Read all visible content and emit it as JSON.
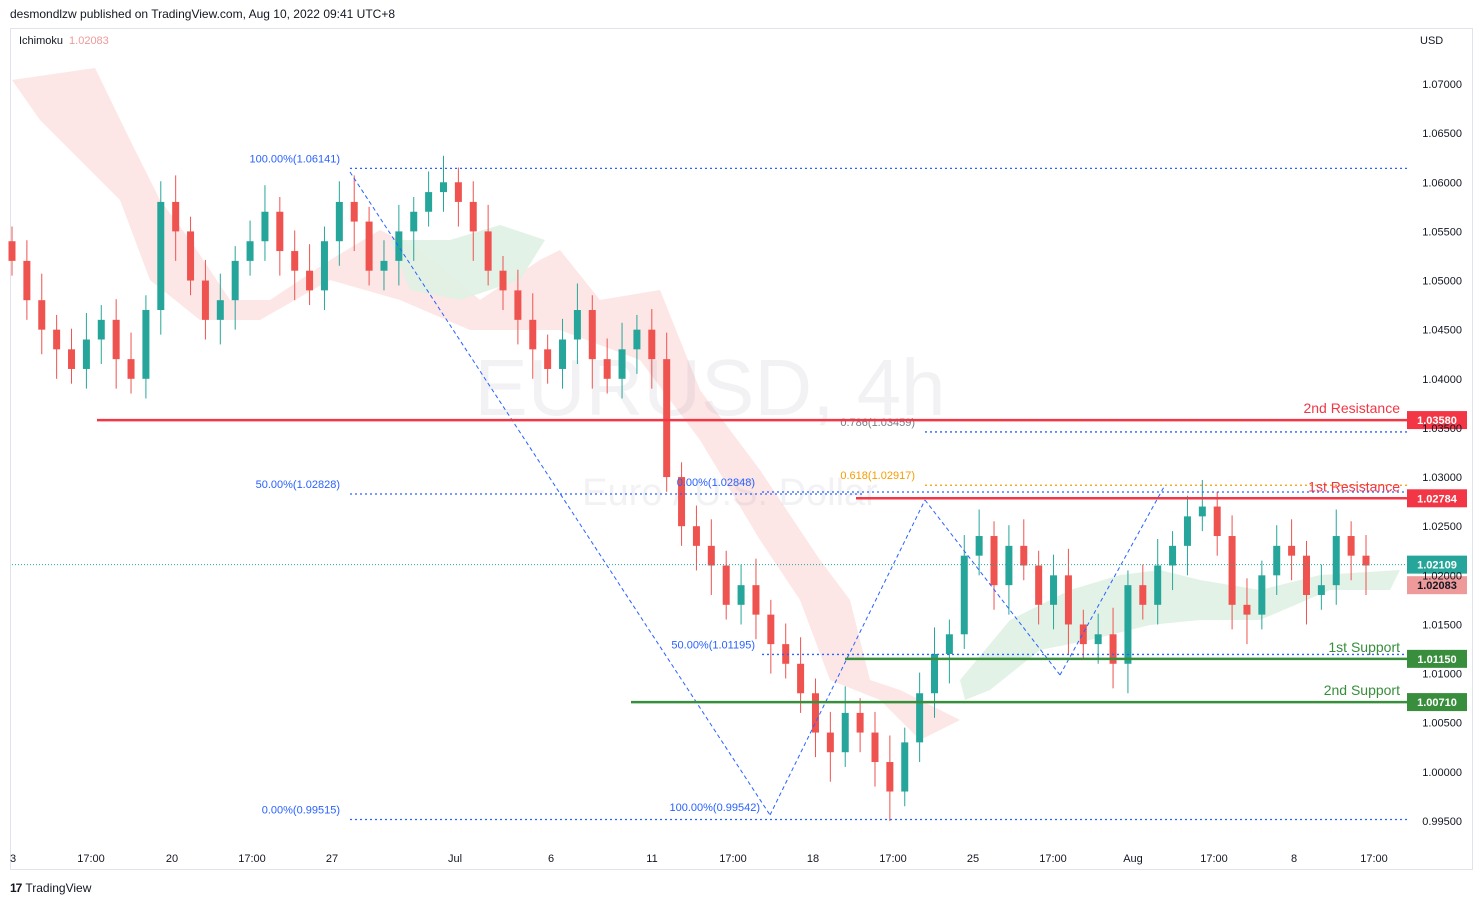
{
  "header": {
    "text": "desmondlzw published on TradingView.com, Aug 10, 2022 09:41 UTC+8"
  },
  "indicator": {
    "name": "Ichimoku",
    "value": "1.02083"
  },
  "currency": "USD",
  "watermark": {
    "symbol": "EURUSD, 4h",
    "name": "Euro / U.S. Dollar"
  },
  "footer": {
    "brand": "TradingView"
  },
  "colors": {
    "resistance": "#f23645",
    "support": "#388e3c",
    "fib": "#2962ff",
    "golden": "#f59d00",
    "up": "#26a69a",
    "down": "#ef5350",
    "cloud_bear": "#fde0e0",
    "cloud_bull": "#e0f1e3"
  },
  "chart_data": {
    "type": "candlestick",
    "title": "EURUSD, 4h",
    "subtitle": "Euro / U.S. Dollar",
    "y_ticks": [
      "1.07000",
      "1.06500",
      "1.06000",
      "1.05500",
      "1.05000",
      "1.04500",
      "1.04000",
      "1.03500",
      "1.03000",
      "1.02500",
      "1.02000",
      "1.01500",
      "1.01000",
      "1.00500",
      "1.00000",
      "0.99500"
    ],
    "x_ticks": [
      "3",
      "17:00",
      "20",
      "17:00",
      "27",
      "Jul",
      "6",
      "11",
      "17:00",
      "18",
      "17:00",
      "25",
      "17:00",
      "Aug",
      "17:00",
      "8",
      "17:00"
    ],
    "levels": [
      {
        "name": "2nd Resistance",
        "value": 1.0358,
        "label": "1.03580",
        "kind": "resistance"
      },
      {
        "name": "1st Resistance",
        "value": 1.02784,
        "label": "1.02784",
        "kind": "resistance"
      },
      {
        "name": "1st Support",
        "value": 1.0115,
        "label": "1.01150",
        "kind": "support"
      },
      {
        "name": "2nd Support",
        "value": 1.0071,
        "label": "1.00710",
        "kind": "support"
      }
    ],
    "price_tags": [
      {
        "label": "1.02109",
        "value": 1.02109,
        "kind": "last"
      },
      {
        "label": "1.02083",
        "value": 1.02083,
        "kind": "ichimoku"
      }
    ],
    "fib_labels": [
      {
        "text": "100.00%(1.06141)",
        "value": 1.06141
      },
      {
        "text": "50.00%(1.02828)",
        "value": 1.02828
      },
      {
        "text": "0.00%(0.99515)",
        "value": 0.99515
      },
      {
        "text": "0.00%(1.02848)",
        "value": 1.02848
      },
      {
        "text": "50.00%(1.01195)",
        "value": 1.01195
      },
      {
        "text": "100.00%(0.99542)",
        "value": 0.99542
      },
      {
        "text": "0.786(1.03459)",
        "value": 1.03459
      },
      {
        "text": "0.618(1.02917)",
        "value": 1.02917
      }
    ],
    "candles_close_approx": [
      1.052,
      1.048,
      1.045,
      1.043,
      1.041,
      1.044,
      1.046,
      1.042,
      1.04,
      1.047,
      1.058,
      1.055,
      1.05,
      1.046,
      1.048,
      1.052,
      1.054,
      1.057,
      1.053,
      1.051,
      1.049,
      1.054,
      1.058,
      1.056,
      1.051,
      1.052,
      1.055,
      1.057,
      1.059,
      1.06,
      1.058,
      1.055,
      1.051,
      1.049,
      1.046,
      1.043,
      1.041,
      1.044,
      1.047,
      1.042,
      1.04,
      1.043,
      1.045,
      1.042,
      1.03,
      1.025,
      1.023,
      1.021,
      1.017,
      1.019,
      1.016,
      1.013,
      1.011,
      1.008,
      1.004,
      1.002,
      1.006,
      1.004,
      1.001,
      0.998,
      1.003,
      1.008,
      1.012,
      1.014,
      1.022,
      1.024,
      1.019,
      1.023,
      1.021,
      1.017,
      1.02,
      1.015,
      1.013,
      1.014,
      1.011,
      1.019,
      1.017,
      1.021,
      1.023,
      1.026,
      1.027,
      1.024,
      1.017,
      1.016,
      1.02,
      1.023,
      1.022,
      1.018,
      1.019,
      1.024,
      1.022,
      1.021
    ]
  }
}
